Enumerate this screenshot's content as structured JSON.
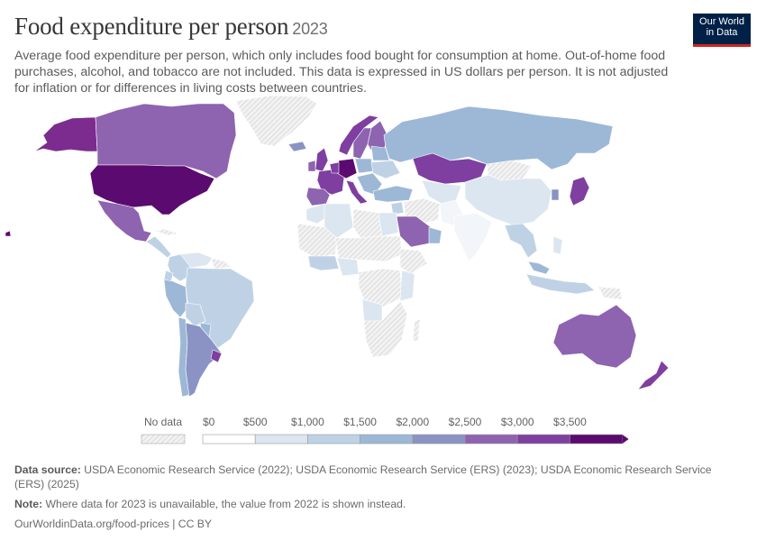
{
  "header": {
    "title": "Food expenditure per person",
    "year": "2023",
    "subtitle": "Average food expenditure per person, which only includes food bought for consumption at home. Out-of-home food purchases, alcohol, and tobacco are not included. This data is expressed in US dollars per person. It is not adjusted for inflation or for differences in living costs between countries."
  },
  "logo": {
    "line1": "Our World",
    "line2": "in Data"
  },
  "legend": {
    "no_data_label": "No data",
    "ticks": [
      "$0",
      "$500",
      "$1,000",
      "$1,500",
      "$2,000",
      "$2,500",
      "$3,000",
      "$3,500"
    ],
    "colors": [
      "#ffffff",
      "#dbe6f0",
      "#bfd2e5",
      "#9db8d6",
      "#8a93c4",
      "#8e63b0",
      "#7e3fa0",
      "#5b0a70"
    ]
  },
  "footer": {
    "source_label": "Data source:",
    "source_text": "USDA Economic Research Service (2022); USDA Economic Research Service (ERS) (2023); USDA Economic Research Service (ERS) (2025)",
    "note_label": "Note:",
    "note_text": "Where data for 2023 is unavailable, the value from 2022 is shown instead.",
    "url_text": "OurWorldinData.org/food-prices | CC BY"
  }
}
